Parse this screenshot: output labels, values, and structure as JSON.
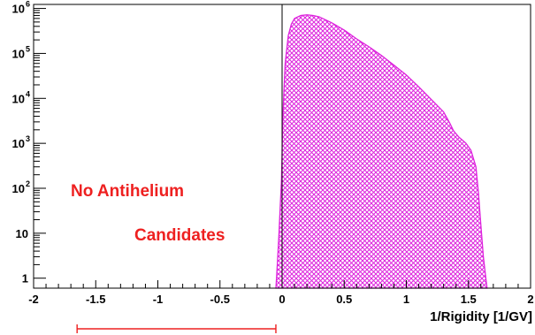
{
  "chart_data": {
    "type": "area",
    "title": "",
    "xlabel": "1/Rigidity [1/GV]",
    "ylabel": "",
    "xlim": [
      -2,
      2
    ],
    "ylim": [
      0.6,
      1000000
    ],
    "y_scale": "log",
    "x_ticks": [
      "-2",
      "-1.5",
      "-1",
      "-0.5",
      "0",
      "0.5",
      "1",
      "1.5",
      "2"
    ],
    "y_ticks": [
      {
        "base": "1",
        "exp": ""
      },
      {
        "base": "10",
        "exp": ""
      },
      {
        "base": "10",
        "exp": "2"
      },
      {
        "base": "10",
        "exp": "3"
      },
      {
        "base": "10",
        "exp": "4"
      },
      {
        "base": "10",
        "exp": "5"
      },
      {
        "base": "10",
        "exp": "6"
      }
    ],
    "fill_color": "#dd22dd",
    "annotation_color": "#ee2020",
    "annotations": [
      "No Antihelium",
      "Candidates"
    ],
    "range_bar": [
      -1.65,
      -0.05
    ],
    "series": [
      {
        "x": [
          -0.05,
          -0.045,
          -0.035,
          -0.025,
          -0.015,
          -0.005,
          0.0,
          0.005,
          0.015,
          0.025,
          0.05,
          0.075,
          0.1,
          0.15,
          0.2,
          0.25,
          0.3,
          0.4,
          0.5,
          0.6,
          0.7,
          0.8,
          0.9,
          1.0,
          1.1,
          1.2,
          1.3,
          1.35,
          1.38,
          1.42,
          1.48,
          1.52,
          1.56,
          1.58,
          1.6,
          1.62,
          1.64,
          1.65
        ],
        "y": [
          0.6,
          1,
          3,
          10,
          40,
          150,
          600,
          3000,
          15000,
          60000,
          250000,
          450000,
          600000,
          700000,
          720000,
          700000,
          650000,
          480000,
          330000,
          210000,
          140000,
          90000,
          55000,
          33000,
          18000,
          9500,
          5000,
          2800,
          1900,
          1400,
          1000,
          700,
          300,
          80,
          15,
          3,
          1,
          0.6
        ]
      }
    ]
  }
}
